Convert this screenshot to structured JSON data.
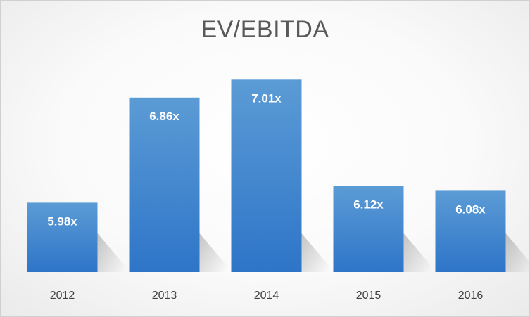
{
  "chart_data": {
    "type": "bar",
    "title": "EV/EBITDA",
    "xlabel": "",
    "ylabel": "",
    "categories": [
      "2012",
      "2013",
      "2014",
      "2015",
      "2016"
    ],
    "values": [
      5.98,
      6.86,
      7.01,
      6.12,
      6.08
    ],
    "data_labels": [
      "5.98x",
      "6.86x",
      "7.01x",
      "6.12x",
      "6.08x"
    ],
    "ylim": [
      5.4,
      7.2
    ],
    "grid": false,
    "legend": "none",
    "bar_color_top": "#5b9bd5",
    "bar_color_bottom": "#2e75c8",
    "text_color": "#595959"
  }
}
